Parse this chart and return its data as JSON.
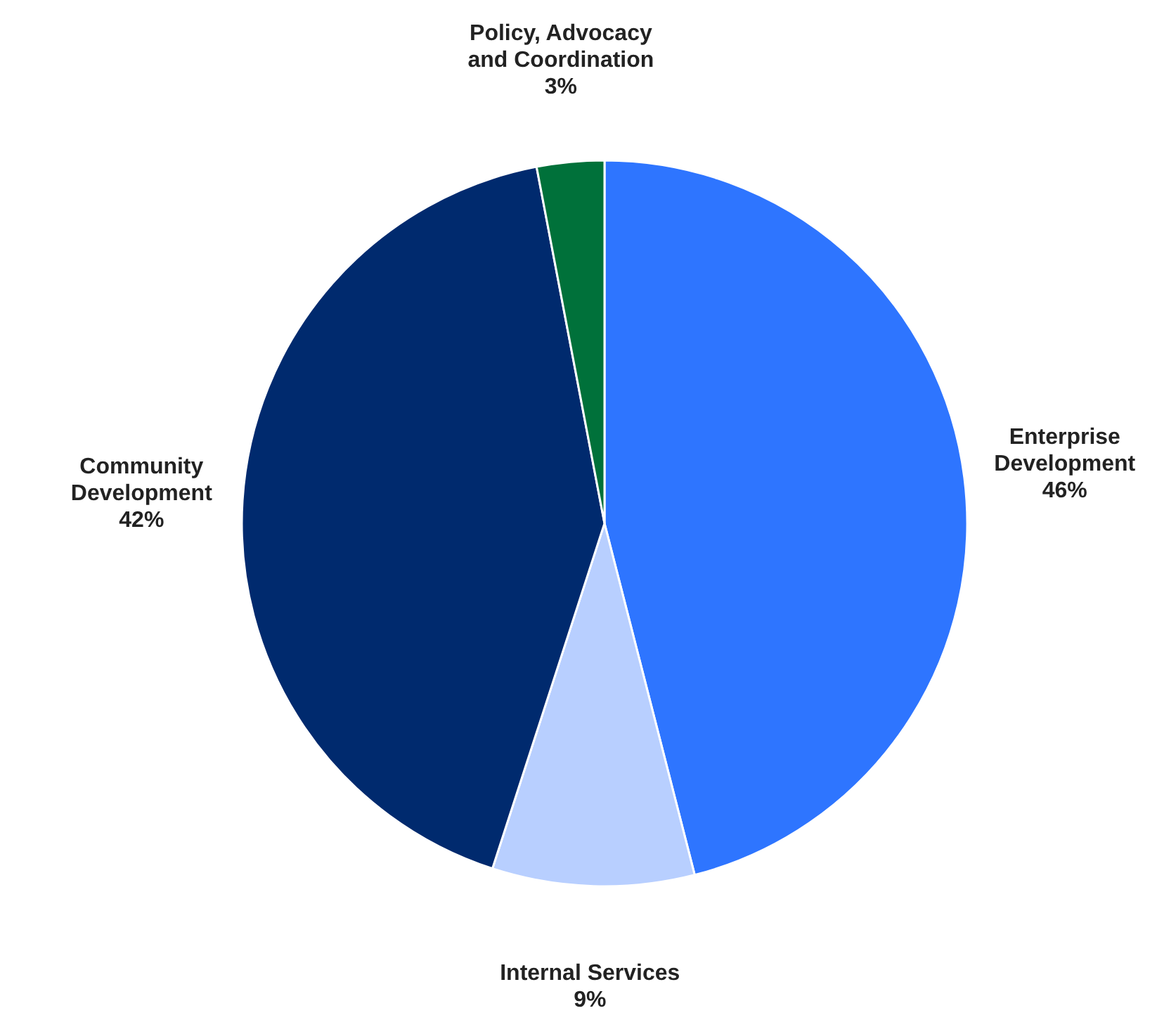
{
  "chart_data": {
    "type": "pie",
    "categories": [
      "Enterprise Development",
      "Internal Services",
      "Community Development",
      "Policy, Advocacy and Coordination"
    ],
    "values": [
      46,
      9,
      42,
      3
    ],
    "colors": [
      "#2e75ff",
      "#b8cfff",
      "#002a6e",
      "#00713a"
    ],
    "value_labels": [
      "46%",
      "9%",
      "42%",
      "3%"
    ]
  }
}
